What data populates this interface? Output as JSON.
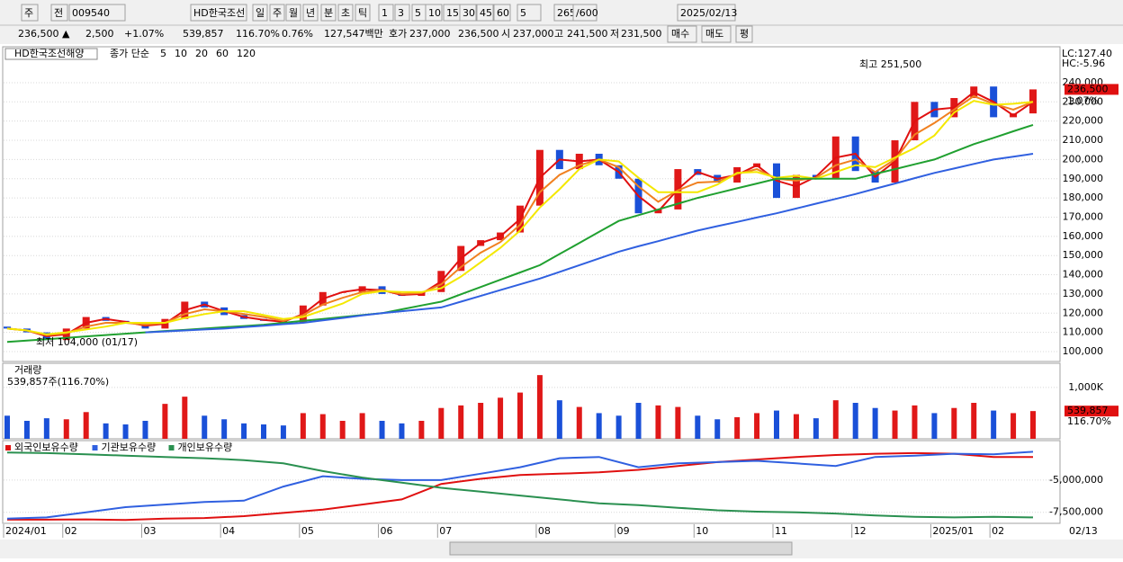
{
  "toolbar": {
    "items": [
      "주",
      "전",
      "009540",
      "HD한국조선",
      "일",
      "주",
      "월",
      "년",
      "분",
      "초",
      "틱",
      "1",
      "3",
      "5",
      "10",
      "15",
      "30",
      "45",
      "60",
      "5",
      "265",
      "/600",
      "2025/02/13"
    ]
  },
  "quote": {
    "items": [
      "236,500 ▲",
      "2,500",
      "+1.07%",
      "539,857",
      "116.70%",
      "0.76%",
      "127,547백만",
      "호가",
      "237,000",
      "236,500",
      "시",
      "237,000",
      "고",
      "241,500",
      "저",
      "231,500",
      "매수",
      "매도",
      "평"
    ]
  },
  "chart_data": [
    {
      "type": "candlestick",
      "title": "HD한국조선해양",
      "subtitle": "종가 단순",
      "categories": [
        "2024/01",
        null,
        null,
        "02",
        null,
        null,
        null,
        "03",
        null,
        null,
        null,
        "04",
        null,
        null,
        null,
        "05",
        null,
        null,
        null,
        "06",
        null,
        null,
        "07",
        null,
        null,
        null,
        null,
        "08",
        null,
        null,
        null,
        "09",
        null,
        null,
        null,
        "10",
        null,
        null,
        null,
        "11",
        null,
        null,
        null,
        "12",
        null,
        null,
        null,
        "2025/01",
        null,
        null,
        "02",
        null,
        null
      ],
      "open": [
        113000,
        112000,
        110000,
        106000,
        112000,
        118000,
        116000,
        115000,
        112000,
        117000,
        126000,
        123000,
        119000,
        117000,
        116000,
        115000,
        124000,
        131000,
        131000,
        134000,
        130000,
        129000,
        131000,
        142000,
        155000,
        158000,
        162000,
        176000,
        205000,
        195000,
        203000,
        197000,
        190000,
        172000,
        174000,
        195000,
        192000,
        188000,
        196000,
        198000,
        180000,
        192000,
        190000,
        212000,
        194000,
        188000,
        210000,
        230000,
        222000,
        232000,
        238000,
        222000,
        224000
      ],
      "close": [
        112000,
        110000,
        106000,
        112000,
        118000,
        116000,
        115000,
        112000,
        117000,
        126000,
        123000,
        119000,
        117000,
        116000,
        115000,
        124000,
        131000,
        131000,
        134000,
        130000,
        129000,
        131000,
        142000,
        155000,
        158000,
        162000,
        176000,
        205000,
        195000,
        203000,
        197000,
        190000,
        172000,
        174000,
        195000,
        192000,
        188000,
        196000,
        198000,
        180000,
        192000,
        190000,
        212000,
        194000,
        188000,
        210000,
        230000,
        222000,
        232000,
        238000,
        222000,
        224000,
        236500
      ],
      "up_color": "#e01818",
      "down_color": "#1a50d8",
      "series": [
        {
          "name": "5",
          "color": "#e01010",
          "values": [
            112000,
            111000,
            108000,
            109000,
            115000,
            117000,
            115500,
            113500,
            114500,
            121500,
            124500,
            121000,
            118000,
            116500,
            115500,
            119500,
            127500,
            131000,
            132500,
            132000,
            129500,
            130000,
            136500,
            148500,
            156500,
            160000,
            169000,
            190500,
            200000,
            199000,
            200000,
            193500,
            181000,
            173000,
            184500,
            193500,
            190000,
            192000,
            197000,
            189000,
            186000,
            191000,
            201000,
            203000,
            191000,
            199000,
            220000,
            226000,
            227000,
            235000,
            230000,
            223000,
            230000
          ]
        },
        {
          "name": "10",
          "color": "#f08020",
          "values": [
            112000,
            111000,
            108500,
            109500,
            113000,
            115000,
            115000,
            114000,
            115000,
            119500,
            122000,
            121000,
            119500,
            118000,
            116000,
            119000,
            124500,
            128000,
            131000,
            132000,
            130000,
            130500,
            135000,
            144000,
            151500,
            157000,
            166000,
            183000,
            192000,
            197000,
            200000,
            196000,
            186000,
            178000,
            184000,
            188000,
            188500,
            192500,
            195000,
            190000,
            189000,
            190500,
            197000,
            200000,
            193500,
            200000,
            213000,
            219000,
            226000,
            233000,
            229000,
            226000,
            230000
          ]
        },
        {
          "name": "20",
          "color": "#f4e800",
          "values": [
            112000,
            111000,
            109000,
            110000,
            111500,
            113000,
            115000,
            115000,
            115000,
            117500,
            119500,
            121000,
            121000,
            119000,
            117000,
            118000,
            121500,
            125000,
            130000,
            131500,
            131000,
            131000,
            133000,
            139000,
            146500,
            154000,
            163000,
            175000,
            184500,
            195000,
            200000,
            199000,
            190500,
            183000,
            183000,
            183000,
            187000,
            193000,
            193500,
            190500,
            191500,
            190000,
            193500,
            197000,
            196000,
            201000,
            206000,
            212500,
            224500,
            230500,
            228500,
            229000,
            230000
          ]
        },
        {
          "name": "60",
          "color": "#20a030",
          "values": [
            105000,
            105700,
            106400,
            107100,
            107900,
            108600,
            109300,
            110000,
            110700,
            111300,
            112000,
            112700,
            113300,
            114000,
            115000,
            116000,
            117000,
            118000,
            119000,
            120000,
            122000,
            124000,
            126000,
            129800,
            133600,
            137400,
            141200,
            145000,
            150800,
            156500,
            162300,
            168000,
            171000,
            174000,
            177000,
            180000,
            182500,
            185000,
            187500,
            190000,
            190000,
            190000,
            190000,
            190000,
            192500,
            195000,
            197500,
            200000,
            204000,
            208000,
            211300,
            214700,
            218000
          ]
        },
        {
          "name": "120",
          "color": "#3060e0",
          "values": [
            null,
            null,
            null,
            null,
            null,
            null,
            null,
            110000,
            110500,
            111000,
            111500,
            112000,
            112800,
            113500,
            114300,
            115000,
            116300,
            117500,
            118800,
            120000,
            121000,
            122000,
            123000,
            126000,
            129000,
            132000,
            135000,
            138000,
            141500,
            145000,
            148500,
            152000,
            154800,
            157500,
            160300,
            163000,
            165300,
            167500,
            169800,
            172000,
            174500,
            177000,
            179500,
            182000,
            184800,
            187500,
            190300,
            193000,
            195300,
            197700,
            200000,
            201500,
            203000
          ]
        }
      ],
      "ylim": [
        94850,
        258700
      ],
      "yticks": [
        {
          "value": 100000,
          "label": "100,000"
        },
        {
          "value": 110000,
          "label": "110,000"
        },
        {
          "value": 120000,
          "label": "120,000"
        },
        {
          "value": 130000,
          "label": "130,000"
        },
        {
          "value": 140000,
          "label": "140,000"
        },
        {
          "value": 150000,
          "label": "150,000"
        },
        {
          "value": 160000,
          "label": "160,000"
        },
        {
          "value": 170000,
          "label": "170,000"
        },
        {
          "value": 180000,
          "label": "180,000"
        },
        {
          "value": 190000,
          "label": "190,000"
        },
        {
          "value": 200000,
          "label": "200,000"
        },
        {
          "value": 210000,
          "label": "210,000"
        },
        {
          "value": 220000,
          "label": "220,000"
        },
        {
          "value": 230000,
          "label": "230,000"
        },
        {
          "value": 240000,
          "label": "240,000"
        }
      ],
      "grid": true,
      "annotations": [
        "최고 251,500",
        "최저 104,000 (01/17)"
      ],
      "side_labels": [
        "LC:127.40",
        "HC:-5.96",
        "236,500",
        "1.07%"
      ],
      "end_date": "02/13"
    },
    {
      "type": "bar",
      "title": "거래량",
      "subtitle": "539,857주(116.70%)",
      "values": [
        450000,
        350000,
        400000,
        380000,
        520000,
        300000,
        280000,
        350000,
        680000,
        820000,
        450000,
        380000,
        300000,
        280000,
        260000,
        500000,
        480000,
        350000,
        500000,
        350000,
        300000,
        350000,
        600000,
        650000,
        700000,
        800000,
        900000,
        1240000,
        750000,
        620000,
        500000,
        450000,
        700000,
        650000,
        620000,
        450000,
        380000,
        420000,
        500000,
        550000,
        480000,
        400000,
        750000,
        700000,
        600000,
        550000,
        650000,
        500000,
        600000,
        700000,
        550000,
        500000,
        539857
      ],
      "ylim": [
        0,
        1470000
      ],
      "yticks": [
        {
          "value": 1000000,
          "label": "1,000K"
        }
      ],
      "last_value_label": "539,857",
      "last_change_label": "116.70%"
    },
    {
      "type": "line",
      "series": [
        {
          "name": "외국인보유수량",
          "color": "#e01010",
          "values": [
            -8070000,
            -8070000,
            -8050000,
            -8100000,
            -8000000,
            -7950000,
            -7800000,
            -7550000,
            -7300000,
            -6900000,
            -6500000,
            -5300000,
            -4900000,
            -4600000,
            -4500000,
            -4400000,
            -4200000,
            -3900000,
            -3600000,
            -3400000,
            -3200000,
            -3050000,
            -2950000,
            -2900000,
            -2950000,
            -3200000,
            -3200000
          ]
        },
        {
          "name": "기관보유수량",
          "color": "#3060e0",
          "values": [
            -8000000,
            -7900000,
            -7500000,
            -7100000,
            -6900000,
            -6700000,
            -6600000,
            -5500000,
            -4700000,
            -4900000,
            -5000000,
            -5000000,
            -4500000,
            -4000000,
            -3300000,
            -3200000,
            -4000000,
            -3700000,
            -3600000,
            -3500000,
            -3700000,
            -3900000,
            -3200000,
            -3100000,
            -2950000,
            -3000000,
            -2800000
          ]
        },
        {
          "name": "개인보유수량",
          "color": "#2a9050",
          "values": [
            -2860000,
            -2900000,
            -3000000,
            -3100000,
            -3200000,
            -3300000,
            -3450000,
            -3700000,
            -4300000,
            -4800000,
            -5200000,
            -5600000,
            -5900000,
            -6200000,
            -6500000,
            -6800000,
            -6950000,
            -7150000,
            -7350000,
            -7450000,
            -7500000,
            -7600000,
            -7750000,
            -7860000,
            -7900000,
            -7850000,
            -7900000
          ]
        }
      ],
      "ylim": [
        -8360000,
        -1930000
      ],
      "yticks": [
        {
          "value": -5000000,
          "label": "-5,000,000"
        },
        {
          "value": -7500000,
          "label": "-7,500,000"
        }
      ]
    }
  ]
}
